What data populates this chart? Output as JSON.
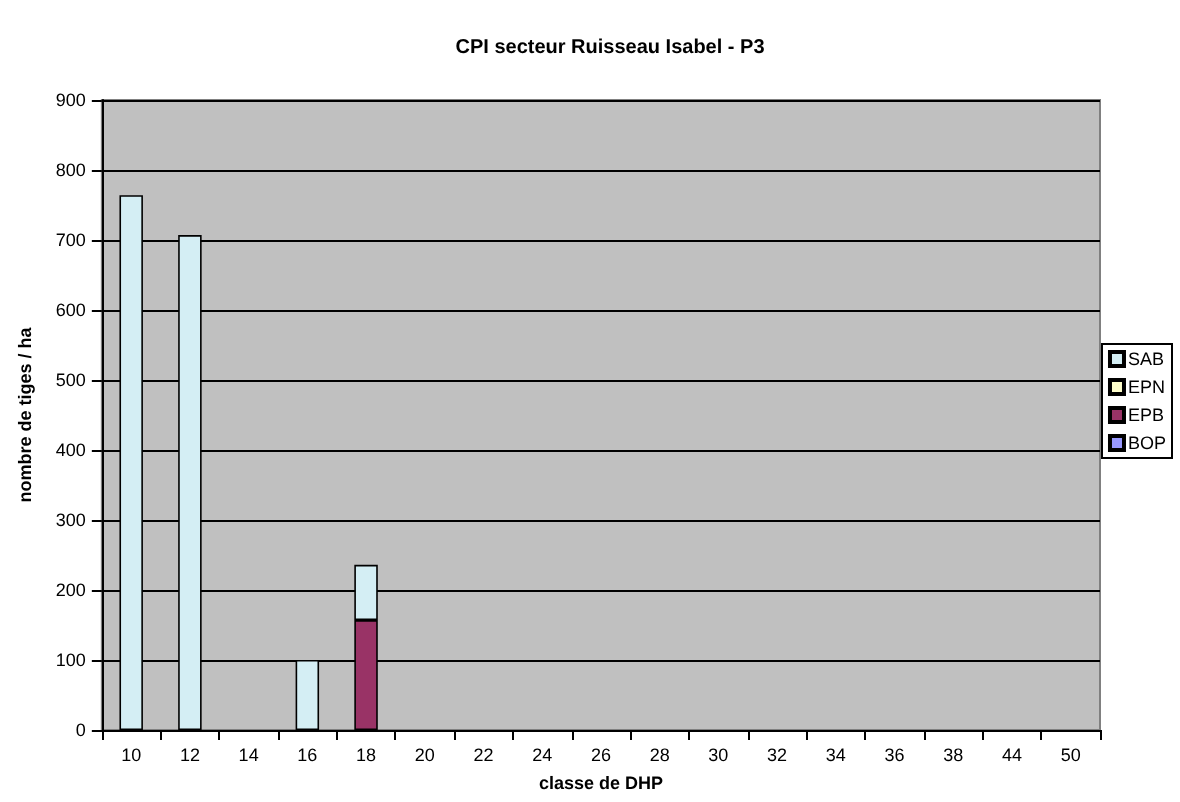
{
  "chart_data": {
    "type": "bar",
    "title": "CPI secteur Ruisseau Isabel - P3",
    "xlabel": "classe de DHP",
    "ylabel": "nombre de tiges / ha",
    "categories": [
      "10",
      "12",
      "14",
      "16",
      "18",
      "20",
      "22",
      "24",
      "26",
      "28",
      "30",
      "32",
      "34",
      "36",
      "38",
      "44",
      "50"
    ],
    "stacked": true,
    "series": [
      {
        "name": "BOP",
        "color": "#9999ff",
        "values": [
          0,
          0,
          0,
          0,
          0,
          0,
          0,
          0,
          0,
          0,
          0,
          0,
          0,
          0,
          0,
          0,
          0
        ]
      },
      {
        "name": "EPB",
        "color": "#993366",
        "values": [
          0,
          0,
          0,
          0,
          157,
          0,
          0,
          0,
          0,
          0,
          0,
          0,
          0,
          0,
          0,
          0,
          0
        ]
      },
      {
        "name": "EPN",
        "color": "#ffffcc",
        "values": [
          0,
          0,
          0,
          0,
          0,
          0,
          0,
          0,
          0,
          0,
          0,
          0,
          0,
          0,
          0,
          0,
          0
        ]
      },
      {
        "name": "SAB",
        "color": "#d4eef4",
        "values": [
          764,
          707,
          0,
          100,
          79,
          0,
          0,
          0,
          0,
          0,
          0,
          0,
          0,
          0,
          0,
          0,
          0
        ]
      }
    ],
    "ylim": [
      0,
      900
    ],
    "yticks": [
      0,
      100,
      200,
      300,
      400,
      500,
      600,
      700,
      800,
      900
    ],
    "grid": "y",
    "legend": "right"
  }
}
